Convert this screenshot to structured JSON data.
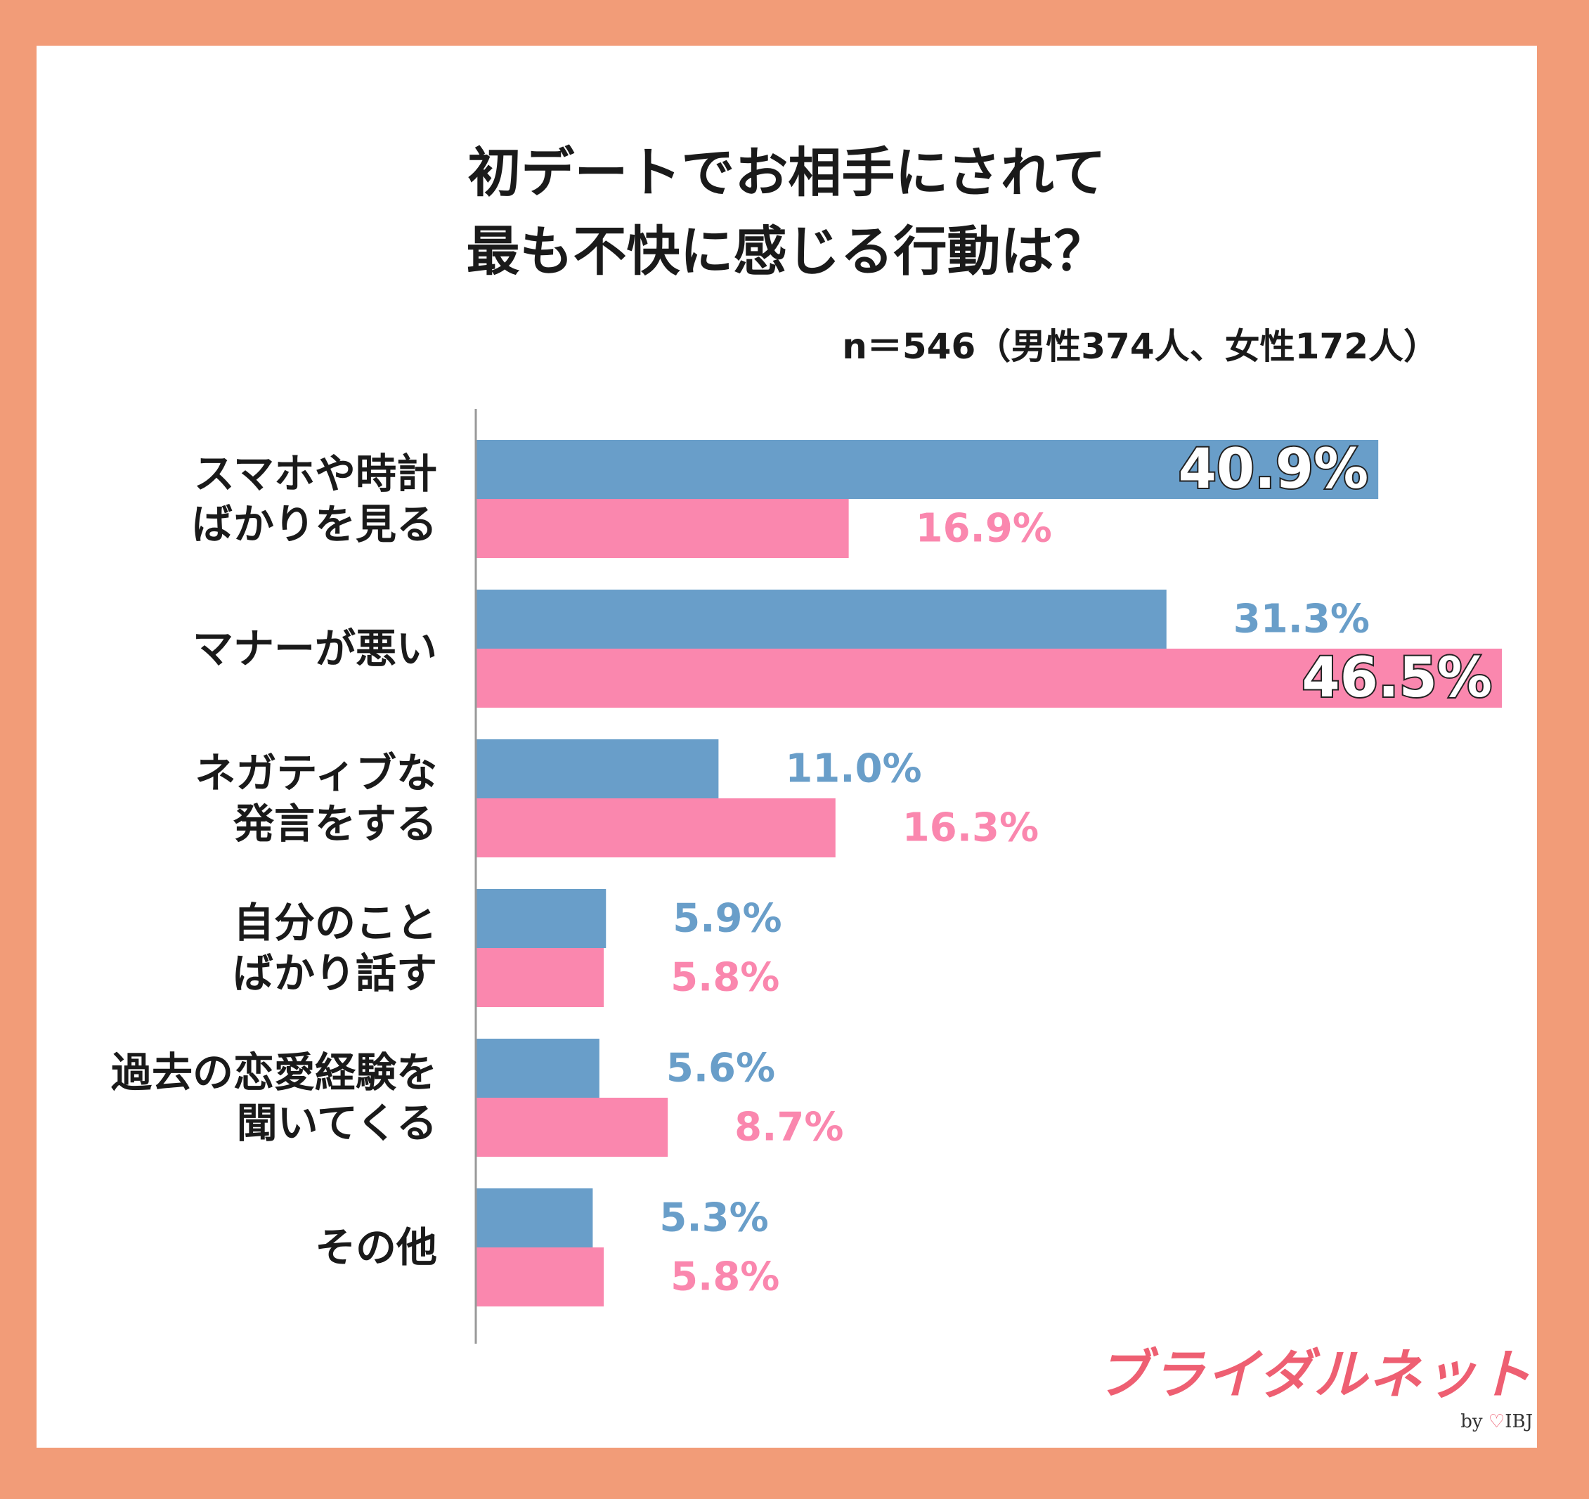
{
  "title_lines": [
    "初デートでお相手にされて",
    "最も不快に感じる行動は？"
  ],
  "sample_note": "n＝546（男性374人、女性172人）",
  "colors": {
    "male": "#699EC9",
    "female": "#FA87AE",
    "frame": "#F29C78",
    "axis": "#999999"
  },
  "chart_data": {
    "type": "bar",
    "orientation": "horizontal",
    "title": "初デートでお相手にされて最も不快に感じる行動は？",
    "categories": [
      [
        "スマホや時計",
        "ばかりを見る"
      ],
      [
        "マナーが悪い"
      ],
      [
        "ネガティブな",
        "発言をする"
      ],
      [
        "自分のこと",
        "ばかり話す"
      ],
      [
        "過去の恋愛経験を",
        "聞いてくる"
      ],
      [
        "その他"
      ]
    ],
    "series": [
      {
        "values": [
          40.9,
          31.3,
          11.0,
          5.9,
          5.6,
          5.3
        ],
        "labels": [
          "40.9%",
          "31.3%",
          "11.0%",
          "5.9%",
          "5.6%",
          "5.3%"
        ],
        "color": "#699EC9"
      },
      {
        "values": [
          16.9,
          46.5,
          16.3,
          5.8,
          8.7,
          5.8
        ],
        "labels": [
          "16.9%",
          "46.5%",
          "16.3%",
          "5.8%",
          "8.7%",
          "5.8%"
        ],
        "color": "#FA87AE"
      }
    ],
    "xlim": [
      0,
      46.5
    ],
    "grid": false,
    "highlight_max_label": true
  },
  "logo": {
    "main": "ブライダルネット",
    "by": "by",
    "heart": "♡",
    "brand": "IBJ"
  }
}
